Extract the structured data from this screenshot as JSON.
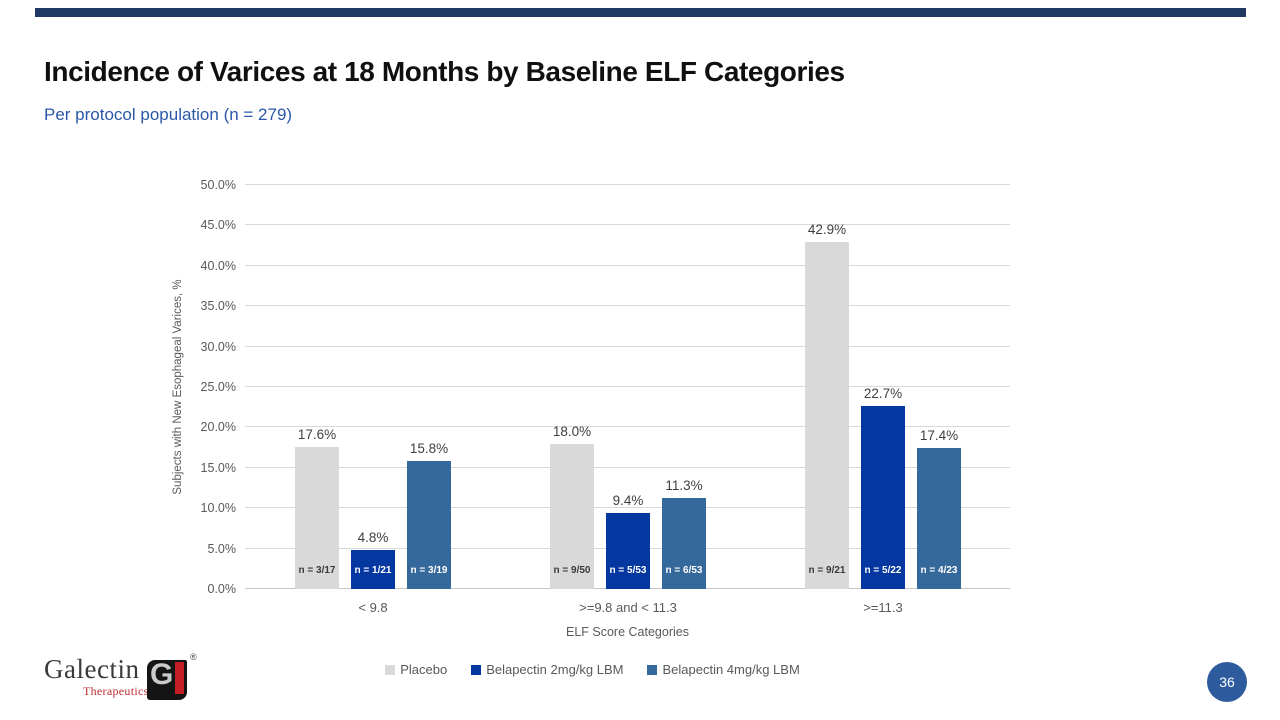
{
  "slide": {
    "title": "Incidence of Varices at 18 Months by Baseline ELF Categories",
    "subtitle": "Per protocol population (n = 279)",
    "page_number": "36",
    "accent_bar_color": "#1F3864",
    "page_badge_color": "#2E5B9E"
  },
  "logo": {
    "name": "Galectin",
    "sub": "Therapeutics",
    "mark_letter": "G",
    "reg": "®"
  },
  "chart_data": {
    "type": "bar",
    "title": "",
    "xlabel": "ELF Score Categories",
    "ylabel": "Subjects with New Esophageal Varices, %",
    "ylim": [
      0,
      50
    ],
    "ytick_step": 5,
    "ytick_labels": [
      "0.0%",
      "5.0%",
      "10.0%",
      "15.0%",
      "20.0%",
      "25.0%",
      "30.0%",
      "35.0%",
      "40.0%",
      "45.0%",
      "50.0%"
    ],
    "grid": true,
    "legend_position": "bottom",
    "categories": [
      "< 9.8",
      ">=9.8 and < 11.3",
      ">=11.3"
    ],
    "series": [
      {
        "name": "Placebo",
        "color": "#D9D9D9",
        "values": [
          17.6,
          18.0,
          42.9
        ],
        "value_labels": [
          "17.6%",
          "18.0%",
          "42.9%"
        ],
        "n_labels": [
          "n = 3/17",
          "n = 9/50",
          "n = 9/21"
        ],
        "n_text_color": "#3B3B3B"
      },
      {
        "name": "Belapectin 2mg/kg LBM",
        "color": "#0537A0",
        "values": [
          4.8,
          9.4,
          22.7
        ],
        "value_labels": [
          "4.8%",
          "9.4%",
          "22.7%"
        ],
        "n_labels": [
          "n = 1/21",
          "n = 5/53",
          "n = 5/22"
        ],
        "n_text_color": "#FFFFFF"
      },
      {
        "name": "Belapectin 4mg/kg LBM",
        "color": "#36699B",
        "values": [
          15.8,
          11.3,
          17.4
        ],
        "value_labels": [
          "15.8%",
          "11.3%",
          "17.4%"
        ],
        "n_labels": [
          "n = 3/19",
          "n = 6/53",
          "n = 4/23"
        ],
        "n_text_color": "#FFFFFF"
      }
    ]
  }
}
